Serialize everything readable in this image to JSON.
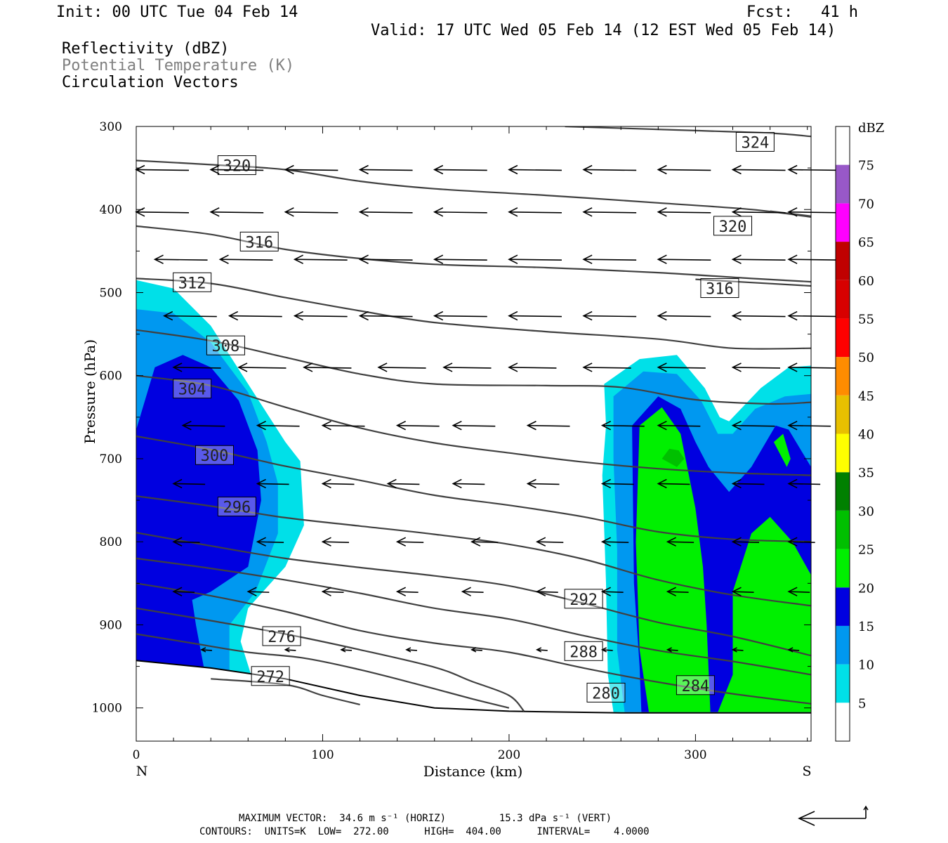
{
  "header": {
    "init": "Init: 00 UTC Tue 04 Feb 14",
    "fcst": "Fcst:   41 h",
    "valid": "Valid: 17 UTC Wed 05 Feb 14 (12 EST Wed 05 Feb 14)",
    "field1": "Reflectivity (dBZ)",
    "field2": "Potential Temperature (K)",
    "field3": "Circulation Vectors"
  },
  "footer": {
    "max_vector": "MAXIMUM VECTOR:  34.6 m s⁻¹ (HORIZ)         15.3 dPa s⁻¹ (VERT)",
    "contours": "CONTOURS:  UNITS=K  LOW=  272.00      HIGH=  404.00      INTERVAL=    4.0000"
  },
  "colors": {
    "c5": "#00e0e8",
    "c10": "#0098f0",
    "c15": "#0000e0",
    "c20": "#00f000",
    "c25": "#00c000",
    "c30": "#008000",
    "c35": "#ffff00",
    "c40": "#e8c000",
    "c45": "#ff8c00",
    "c50": "#ff0000",
    "c55": "#d80000",
    "c60": "#c00000",
    "c65": "#ff00ff",
    "c70": "#9858c8",
    "contour": "#404040"
  },
  "chart_data": {
    "type": "cross-section",
    "title": "",
    "xlabel": "Distance (km)",
    "ylabel": "Pressure (hPa)",
    "xlim": [
      0,
      362
    ],
    "ylim": [
      1040,
      300
    ],
    "x_ticks": [
      0,
      100,
      200,
      300
    ],
    "y_ticks": [
      300,
      400,
      500,
      600,
      700,
      800,
      900,
      1000
    ],
    "x_end_labels": {
      "left": "N",
      "right": "S"
    },
    "colorbar": {
      "unit": "dBZ",
      "levels": [
        "5",
        "10",
        "15",
        "20",
        "25",
        "30",
        "35",
        "40",
        "45",
        "50",
        "55",
        "60",
        "65",
        "70",
        "75"
      ]
    },
    "theta_contours": [
      {
        "label": "324",
        "pts": [
          [
            230,
            300
          ],
          [
            300,
            305
          ],
          [
            340,
            308
          ],
          [
            362,
            312
          ]
        ],
        "lx": 332,
        "ly": 319
      },
      {
        "label": "320",
        "pts": [
          [
            0,
            341
          ],
          [
            40,
            346
          ],
          [
            80,
            352
          ],
          [
            120,
            366
          ],
          [
            160,
            375
          ],
          [
            220,
            383
          ],
          [
            280,
            392
          ],
          [
            330,
            400
          ],
          [
            362,
            409
          ]
        ],
        "lx": 54,
        "ly": 347
      },
      {
        "label": "320",
        "pts": [
          [
            340,
            402
          ],
          [
            362,
            408
          ]
        ],
        "lx": 320,
        "ly": 420
      },
      {
        "label": "316",
        "pts": [
          [
            0,
            420
          ],
          [
            40,
            430
          ],
          [
            80,
            448
          ],
          [
            120,
            459
          ],
          [
            160,
            466
          ],
          [
            220,
            470
          ],
          [
            280,
            476
          ],
          [
            330,
            483
          ],
          [
            362,
            487
          ]
        ],
        "lx": 66,
        "ly": 439
      },
      {
        "label": "316",
        "pts": [
          [
            300,
            484
          ],
          [
            362,
            492
          ]
        ],
        "lx": 313,
        "ly": 495
      },
      {
        "label": "312",
        "pts": [
          [
            0,
            483
          ],
          [
            40,
            489
          ],
          [
            80,
            506
          ],
          [
            120,
            522
          ],
          [
            160,
            536
          ],
          [
            220,
            547
          ],
          [
            280,
            556
          ],
          [
            320,
            567
          ],
          [
            362,
            567
          ]
        ],
        "lx": 30,
        "ly": 488
      },
      {
        "label": "308",
        "pts": [
          [
            0,
            545
          ],
          [
            40,
            558
          ],
          [
            80,
            578
          ],
          [
            120,
            598
          ],
          [
            160,
            610
          ],
          [
            220,
            612
          ],
          [
            260,
            614
          ],
          [
            300,
            629
          ],
          [
            340,
            634
          ],
          [
            362,
            632
          ]
        ],
        "lx": 48,
        "ly": 564
      },
      {
        "label": "304",
        "pts": [
          [
            0,
            600
          ],
          [
            40,
            612
          ],
          [
            80,
            638
          ],
          [
            120,
            663
          ],
          [
            160,
            681
          ],
          [
            200,
            693
          ],
          [
            240,
            704
          ],
          [
            280,
            712
          ],
          [
            320,
            717
          ],
          [
            362,
            720
          ]
        ],
        "lx": 30,
        "ly": 616
      },
      {
        "label": "300",
        "pts": [
          [
            0,
            673
          ],
          [
            40,
            689
          ],
          [
            80,
            709
          ],
          [
            120,
            726
          ],
          [
            160,
            744
          ],
          [
            200,
            756
          ],
          [
            240,
            770
          ],
          [
            280,
            788
          ],
          [
            320,
            797
          ],
          [
            362,
            800
          ]
        ],
        "lx": 42,
        "ly": 696
      },
      {
        "label": "296",
        "pts": [
          [
            0,
            745
          ],
          [
            40,
            757
          ],
          [
            80,
            771
          ],
          [
            120,
            781
          ],
          [
            160,
            791
          ],
          [
            200,
            803
          ],
          [
            240,
            821
          ],
          [
            280,
            846
          ],
          [
            320,
            864
          ],
          [
            362,
            877
          ]
        ],
        "lx": 54,
        "ly": 758
      },
      {
        "label": "292",
        "pts": [
          [
            0,
            789
          ],
          [
            40,
            805
          ],
          [
            80,
            820
          ],
          [
            120,
            831
          ],
          [
            160,
            841
          ],
          [
            200,
            853
          ],
          [
            240,
            874
          ],
          [
            280,
            897
          ],
          [
            320,
            914
          ],
          [
            362,
            937
          ]
        ],
        "lx": 240,
        "ly": 869
      },
      {
        "label": "288",
        "pts": [
          [
            0,
            820
          ],
          [
            40,
            832
          ],
          [
            80,
            846
          ],
          [
            120,
            862
          ],
          [
            160,
            880
          ],
          [
            200,
            893
          ],
          [
            240,
            913
          ],
          [
            280,
            931
          ],
          [
            320,
            944
          ],
          [
            362,
            960
          ]
        ],
        "lx": 240,
        "ly": 932
      },
      {
        "label": "284",
        "pts": [
          [
            0,
            850
          ],
          [
            40,
            865
          ],
          [
            80,
            884
          ],
          [
            120,
            907
          ],
          [
            160,
            922
          ],
          [
            200,
            933
          ],
          [
            240,
            952
          ],
          [
            280,
            969
          ],
          [
            320,
            983
          ],
          [
            362,
            995
          ]
        ],
        "lx": 300,
        "ly": 973
      },
      {
        "label": "280",
        "pts": [
          [
            0,
            880
          ],
          [
            40,
            895
          ],
          [
            80,
            911
          ],
          [
            120,
            930
          ],
          [
            160,
            951
          ],
          [
            180,
            968
          ],
          [
            200,
            985
          ],
          [
            208,
            1004
          ]
        ],
        "lx": 252,
        "ly": 982
      },
      {
        "label": "276",
        "pts": [
          [
            0,
            911
          ],
          [
            30,
            922
          ],
          [
            60,
            933
          ],
          [
            90,
            940
          ],
          [
            120,
            954
          ],
          [
            150,
            971
          ],
          [
            180,
            989
          ],
          [
            200,
            1000
          ]
        ],
        "lx": 78,
        "ly": 914
      },
      {
        "label": "272",
        "pts": [
          [
            40,
            965
          ],
          [
            80,
            972
          ],
          [
            100,
            985
          ],
          [
            120,
            996
          ]
        ],
        "lx": 72,
        "ly": 962
      }
    ],
    "terrain": [
      [
        0,
        943
      ],
      [
        40,
        952
      ],
      [
        80,
        965
      ],
      [
        120,
        985
      ],
      [
        160,
        1000
      ],
      [
        200,
        1004
      ],
      [
        260,
        1006
      ],
      [
        362,
        1006
      ]
    ],
    "reflectivity_regions": [
      {
        "dbz": 5,
        "pts": [
          [
            0,
            485
          ],
          [
            20,
            495
          ],
          [
            40,
            540
          ],
          [
            60,
            610
          ],
          [
            80,
            680
          ],
          [
            88,
            703
          ],
          [
            90,
            780
          ],
          [
            80,
            830
          ],
          [
            60,
            880
          ],
          [
            56,
            920
          ],
          [
            62,
            963
          ],
          [
            40,
            963
          ],
          [
            0,
            963
          ]
        ]
      },
      {
        "dbz": 10,
        "pts": [
          [
            0,
            520
          ],
          [
            20,
            525
          ],
          [
            40,
            560
          ],
          [
            60,
            620
          ],
          [
            70,
            680
          ],
          [
            76,
            730
          ],
          [
            76,
            790
          ],
          [
            64,
            860
          ],
          [
            50,
            900
          ],
          [
            50,
            960
          ],
          [
            30,
            960
          ],
          [
            0,
            960
          ]
        ]
      },
      {
        "dbz": 15,
        "pts": [
          [
            0,
            665
          ],
          [
            10,
            590
          ],
          [
            25,
            575
          ],
          [
            40,
            590
          ],
          [
            55,
            630
          ],
          [
            65,
            690
          ],
          [
            67,
            750
          ],
          [
            60,
            830
          ],
          [
            40,
            860
          ],
          [
            30,
            870
          ],
          [
            32,
            900
          ],
          [
            37,
            960
          ],
          [
            0,
            960
          ]
        ]
      },
      {
        "dbz": 5,
        "pts": [
          [
            251,
            610
          ],
          [
            270,
            580
          ],
          [
            290,
            575
          ],
          [
            305,
            615
          ],
          [
            313,
            650
          ],
          [
            318,
            655
          ],
          [
            335,
            615
          ],
          [
            350,
            590
          ],
          [
            362,
            588
          ],
          [
            362,
            1005
          ],
          [
            256,
            1005
          ],
          [
            253,
            960
          ],
          [
            252,
            850
          ],
          [
            250,
            720
          ],
          [
            252,
            660
          ]
        ]
      },
      {
        "dbz": 10,
        "pts": [
          [
            256,
            625
          ],
          [
            272,
            595
          ],
          [
            290,
            598
          ],
          [
            303,
            630
          ],
          [
            312,
            670
          ],
          [
            320,
            670
          ],
          [
            332,
            640
          ],
          [
            348,
            625
          ],
          [
            362,
            622
          ],
          [
            362,
            1005
          ],
          [
            262,
            1005
          ],
          [
            258,
            930
          ],
          [
            258,
            810
          ],
          [
            256,
            700
          ]
        ]
      },
      {
        "dbz": 15,
        "pts": [
          [
            266,
            660
          ],
          [
            280,
            625
          ],
          [
            292,
            640
          ],
          [
            300,
            680
          ],
          [
            307,
            710
          ],
          [
            318,
            740
          ],
          [
            330,
            710
          ],
          [
            343,
            660
          ],
          [
            350,
            665
          ],
          [
            362,
            710
          ],
          [
            362,
            1005
          ],
          [
            271,
            1005
          ],
          [
            270,
            950
          ],
          [
            267,
            850
          ]
        ]
      },
      {
        "dbz": 20,
        "pts": [
          [
            270,
            660
          ],
          [
            282,
            638
          ],
          [
            292,
            670
          ],
          [
            300,
            760
          ],
          [
            304,
            830
          ],
          [
            306,
            900
          ],
          [
            308,
            1005
          ],
          [
            275,
            1005
          ],
          [
            270,
            930
          ],
          [
            268,
            800
          ]
        ]
      },
      {
        "dbz": 20,
        "pts": [
          [
            320,
            860
          ],
          [
            330,
            790
          ],
          [
            340,
            770
          ],
          [
            352,
            800
          ],
          [
            362,
            840
          ],
          [
            362,
            1005
          ],
          [
            312,
            1005
          ],
          [
            320,
            960
          ]
        ]
      },
      {
        "dbz": 20,
        "pts": [
          [
            342,
            680
          ],
          [
            347,
            670
          ],
          [
            351,
            700
          ],
          [
            349,
            710
          ]
        ]
      },
      {
        "dbz": 25,
        "pts": [
          [
            282,
            700
          ],
          [
            286,
            688
          ],
          [
            291,
            690
          ],
          [
            294,
            700
          ],
          [
            290,
            710
          ]
        ]
      }
    ],
    "vector_rows": [
      {
        "p": 352,
        "x": [
          0,
          40,
          80,
          120,
          160,
          200,
          240,
          280,
          320,
          350
        ],
        "len": 10
      },
      {
        "p": 403,
        "x": [
          0,
          40,
          80,
          120,
          160,
          200,
          240,
          280,
          320,
          350
        ],
        "len": 10
      },
      {
        "p": 460,
        "x": [
          10,
          45,
          85,
          120,
          160,
          200,
          240,
          280,
          320,
          350
        ],
        "len": 10
      },
      {
        "p": 528,
        "x": [
          15,
          50,
          85,
          120,
          160,
          200,
          240,
          280,
          320,
          350
        ],
        "len": 10
      },
      {
        "p": 590,
        "x": [
          20,
          55,
          90,
          130,
          165,
          200,
          240,
          280,
          320,
          350
        ],
        "len": 9
      },
      {
        "p": 660,
        "x": [
          25,
          65,
          100,
          140,
          170,
          210,
          250,
          280,
          320,
          350
        ],
        "len": 8
      },
      {
        "p": 730,
        "x": [
          20,
          65,
          100,
          135,
          170,
          210,
          250,
          280,
          320,
          350
        ],
        "len": 6
      },
      {
        "p": 800,
        "x": [
          20,
          65,
          100,
          140,
          180,
          215,
          250,
          285,
          320,
          350
        ],
        "len": 5
      },
      {
        "p": 860,
        "x": [
          20,
          60,
          100,
          140,
          175,
          215,
          250,
          285,
          320,
          350
        ],
        "len": 4
      },
      {
        "p": 930,
        "x": [
          35,
          80,
          110,
          145,
          180,
          215,
          250,
          285,
          320,
          350
        ],
        "len": 2
      }
    ]
  }
}
